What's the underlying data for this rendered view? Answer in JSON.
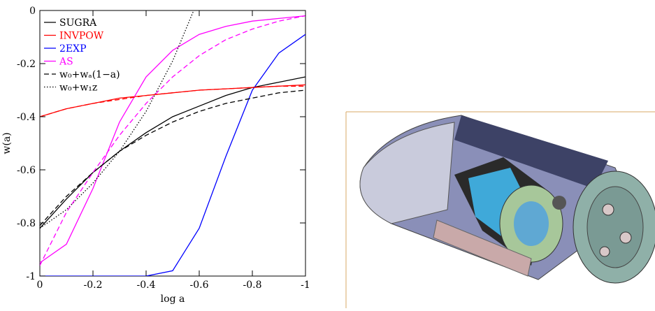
{
  "chart_data": {
    "type": "line",
    "x_label": "log a",
    "y_label": "w(a)",
    "x": [
      0,
      -0.1,
      -0.2,
      -0.3,
      -0.4,
      -0.5,
      -0.6,
      -0.7,
      -0.8,
      -0.9,
      -1
    ],
    "xlim": [
      0,
      -1
    ],
    "ylim": [
      -1,
      0
    ],
    "xticks": [
      0,
      -0.2,
      -0.4,
      -0.6,
      -0.8,
      -1
    ],
    "yticks": [
      0,
      -0.2,
      -0.4,
      -0.6,
      -0.8,
      -1
    ],
    "legend": "upper left",
    "series": [
      {
        "name": "SUGRA",
        "color": "#000000",
        "style": "solid",
        "values": [
          -0.82,
          -0.71,
          -0.61,
          -0.53,
          -0.46,
          -0.4,
          -0.36,
          -0.32,
          -0.29,
          -0.27,
          -0.25
        ]
      },
      {
        "name": "INVPOW",
        "color": "#ff0000",
        "style": "solid",
        "values": [
          -0.4,
          -0.37,
          -0.35,
          -0.33,
          -0.32,
          -0.31,
          -0.3,
          -0.295,
          -0.29,
          -0.285,
          -0.28
        ]
      },
      {
        "name": "2EXP",
        "color": "#0000ff",
        "style": "solid",
        "values": [
          -1,
          -1,
          -1,
          -1,
          -1,
          -0.98,
          -0.82,
          -0.55,
          -0.3,
          -0.16,
          -0.09
        ]
      },
      {
        "name": "AS",
        "color": "#ff00ff",
        "style": "solid",
        "values": [
          -0.95,
          -0.88,
          -0.67,
          -0.42,
          -0.25,
          -0.15,
          -0.09,
          -0.06,
          -0.04,
          -0.03,
          -0.02
        ]
      },
      {
        "name": "w₀+wₐ(1−a)",
        "color": "#000000",
        "style": "dashed",
        "values": [
          -0.81,
          -0.7,
          -0.61,
          -0.53,
          -0.47,
          -0.42,
          -0.38,
          -0.35,
          -0.33,
          -0.31,
          -0.3
        ]
      },
      {
        "name": "w₀+w₁z",
        "color": "#000000",
        "style": "dotted",
        "values": [
          -0.82,
          -0.75,
          -0.65,
          -0.53,
          -0.38,
          -0.19,
          0.05,
          null,
          null,
          null,
          null
        ]
      },
      {
        "color": "#ff0000",
        "style": "dashed",
        "values": [
          -0.4,
          -0.37,
          -0.35,
          -0.335,
          -0.32,
          -0.31,
          -0.3,
          -0.295,
          -0.29,
          -0.285,
          -0.285
        ]
      },
      {
        "color": "#ff00ff",
        "style": "dashed",
        "values": [
          -0.96,
          -0.76,
          -0.61,
          -0.47,
          -0.35,
          -0.25,
          -0.17,
          -0.11,
          -0.07,
          -0.04,
          -0.02
        ]
      }
    ]
  }
}
